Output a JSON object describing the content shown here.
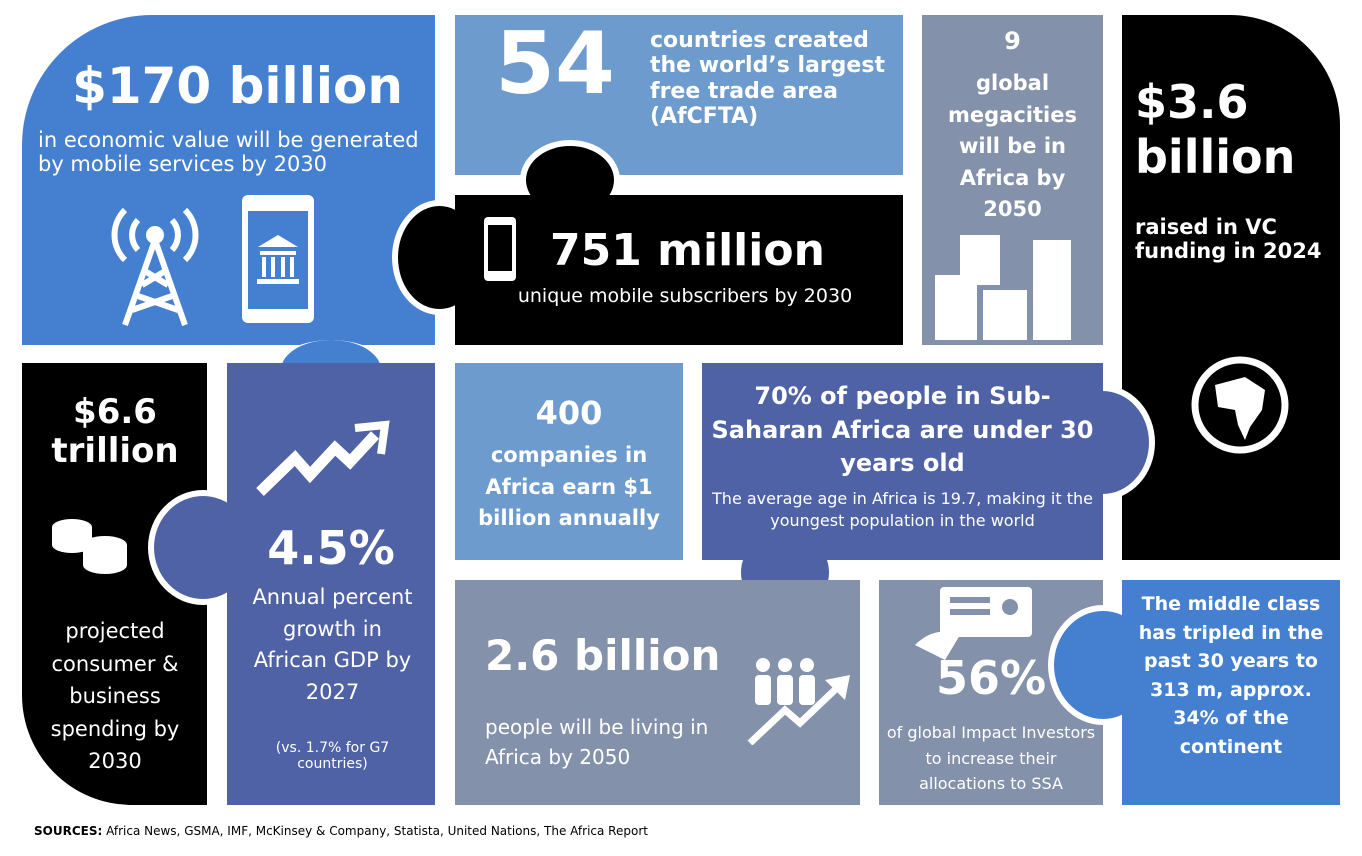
{
  "colors": {
    "blue": "#4580D0",
    "light_blue": "#6E9BCD",
    "gray": "#8491AA",
    "dark_blue": "#4F62A5",
    "black": "#000000"
  },
  "tiles": {
    "mobile_value": {
      "headline": "$170 billion",
      "text": "in economic value will be generated by mobile services by 2030",
      "icons": [
        "cell-tower-icon",
        "mobile-banking-icon"
      ]
    },
    "afcfta": {
      "headline": "54",
      "text": "countries created the world’s largest free trade area (AfCFTA)"
    },
    "subscribers": {
      "headline": "751 million",
      "text": "unique mobile subscribers by 2030",
      "icons": [
        "smartphone-icon"
      ]
    },
    "megacities": {
      "headline": "9",
      "text": "global megacities will be in Africa by 2050",
      "icons": [
        "city-buildings-icon"
      ]
    },
    "vc": {
      "headline": "$3.6 billion",
      "text": "raised in VC funding in 2024",
      "icons": [
        "globe-africa-icon"
      ]
    },
    "spending": {
      "headline": "$6.6 trillion",
      "text": "projected consumer & business spending by 2030",
      "icons": [
        "coins-icon"
      ]
    },
    "gdp": {
      "headline": "4.5%",
      "text": "Annual percent growth in African GDP by 2027",
      "note": "(vs. 1.7% for G7 countries)",
      "icons": [
        "growth-arrow-icon"
      ]
    },
    "companies": {
      "headline": "400",
      "text": "companies in Africa earn $1 billion annually"
    },
    "youth": {
      "headline": "70% of people in Sub-Saharan Africa are under 30 years old",
      "text": "The average age in Africa is 19.7, making it the youngest population in the world"
    },
    "population": {
      "headline": "2.6 billion",
      "text": "people will be living in Africa by 2050",
      "icons": [
        "people-growth-icon"
      ]
    },
    "impact": {
      "headline": "56%",
      "text": "of global Impact Investors to increase their  allocations to SSA",
      "icons": [
        "investment-card-icon"
      ]
    },
    "middle_class": {
      "text": "The middle class has tripled in the past 30 years to 313 m, approx. 34% of the continent"
    }
  },
  "sources": {
    "label": "SOURCES:",
    "text": " Africa News, GSMA, IMF, McKinsey & Company, Statista, United Nations, The Africa Report"
  }
}
